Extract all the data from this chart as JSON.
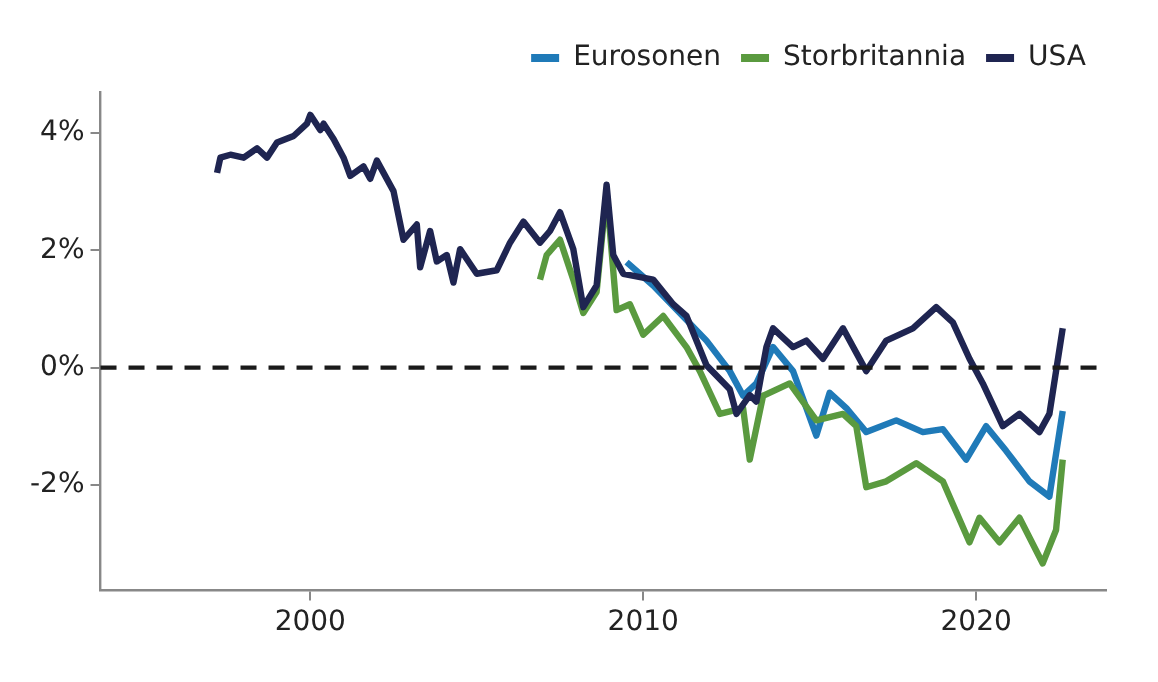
{
  "chart_data": {
    "type": "line",
    "xlim": [
      1993.7,
      2023.9
    ],
    "ylim": [
      -3.8,
      4.7
    ],
    "xticks": [
      2000,
      2010,
      2020
    ],
    "yticks": [
      {
        "value": 4,
        "label": "4%"
      },
      {
        "value": 2,
        "label": "2%"
      },
      {
        "value": 0,
        "label": "0%"
      },
      {
        "value": -2,
        "label": "-2%"
      }
    ],
    "grid": false,
    "legend": "top right",
    "line_style": "solid",
    "marker": "none",
    "ref_lines": [
      {
        "axis": "y",
        "value": 0,
        "line_style": "dashed",
        "color": "#1a1a1a"
      }
    ],
    "series": [
      {
        "name": "Eurosonen",
        "color": "#1f7ab8",
        "x": [
          2009.5,
          2010.3,
          2011.9,
          2012.6,
          2013.0,
          2013.4,
          2013.9,
          2014.5,
          2015.2,
          2015.6,
          2016.1,
          2016.7,
          2017.6,
          2018.4,
          2019.0,
          2019.7,
          2020.3,
          2020.9,
          2021.6,
          2022.2,
          2022.6
        ],
        "values": [
          1.8,
          1.4,
          0.46,
          -0.06,
          -0.48,
          -0.27,
          0.35,
          -0.06,
          -1.16,
          -0.43,
          -0.69,
          -1.1,
          -0.9,
          -1.1,
          -1.05,
          -1.57,
          -1.0,
          -1.42,
          -1.94,
          -2.2,
          -0.74
        ]
      },
      {
        "name": "Storbritannia",
        "color": "#5a9a3f",
        "x": [
          2006.9,
          2007.1,
          2007.5,
          2007.9,
          2008.2,
          2008.6,
          2008.9,
          2009.2,
          2009.6,
          2010.0,
          2010.6,
          2011.3,
          2011.7,
          2012.3,
          2013.0,
          2013.2,
          2013.6,
          2014.4,
          2015.2,
          2016.0,
          2016.4,
          2016.7,
          2017.3,
          2018.2,
          2019.0,
          2019.4,
          2019.8,
          2020.1,
          2020.7,
          2021.3,
          2022.0,
          2022.4,
          2022.6
        ],
        "values": [
          1.5,
          1.92,
          2.18,
          1.5,
          0.93,
          1.29,
          3.0,
          0.98,
          1.08,
          0.56,
          0.88,
          0.35,
          -0.06,
          -0.79,
          -0.69,
          -1.57,
          -0.48,
          -0.27,
          -0.9,
          -0.79,
          -1.0,
          -2.04,
          -1.94,
          -1.63,
          -1.94,
          -2.46,
          -2.98,
          -2.56,
          -2.98,
          -2.56,
          -3.34,
          -2.77,
          -1.57
        ]
      },
      {
        "name": "USA",
        "color": "#1f2551",
        "x": [
          1997.2,
          1997.3,
          1997.6,
          1998.0,
          1998.4,
          1998.7,
          1999.0,
          1999.5,
          1999.9,
          2000.0,
          2000.3,
          2000.4,
          2000.7,
          2001.0,
          2001.2,
          2001.6,
          2001.8,
          2002.0,
          2002.5,
          2002.8,
          2003.2,
          2003.3,
          2003.6,
          2003.8,
          2004.1,
          2004.3,
          2004.5,
          2005.0,
          2005.6,
          2006.0,
          2006.4,
          2006.9,
          2007.2,
          2007.5,
          2007.9,
          2008.2,
          2008.6,
          2008.9,
          2009.1,
          2009.4,
          2010.3,
          2010.9,
          2011.3,
          2011.9,
          2012.6,
          2012.8,
          2013.2,
          2013.4,
          2013.7,
          2013.9,
          2014.5,
          2014.9,
          2015.4,
          2016.0,
          2016.7,
          2017.3,
          2018.1,
          2018.8,
          2019.3,
          2019.8,
          2020.2,
          2020.8,
          2021.3,
          2021.9,
          2022.2,
          2022.6
        ],
        "values": [
          3.32,
          3.58,
          3.63,
          3.58,
          3.74,
          3.58,
          3.84,
          3.95,
          4.16,
          4.31,
          4.05,
          4.16,
          3.9,
          3.58,
          3.27,
          3.43,
          3.22,
          3.53,
          3.01,
          2.18,
          2.44,
          1.71,
          2.33,
          1.81,
          1.92,
          1.45,
          2.02,
          1.6,
          1.66,
          2.13,
          2.49,
          2.13,
          2.33,
          2.65,
          2.02,
          1.03,
          1.4,
          3.12,
          1.92,
          1.6,
          1.5,
          1.08,
          0.88,
          0.04,
          -0.37,
          -0.79,
          -0.47,
          -0.58,
          0.35,
          0.67,
          0.35,
          0.46,
          0.15,
          0.67,
          -0.06,
          0.46,
          0.67,
          1.03,
          0.77,
          0.15,
          -0.27,
          -1.0,
          -0.79,
          -1.1,
          -0.79,
          0.67
        ]
      }
    ]
  }
}
